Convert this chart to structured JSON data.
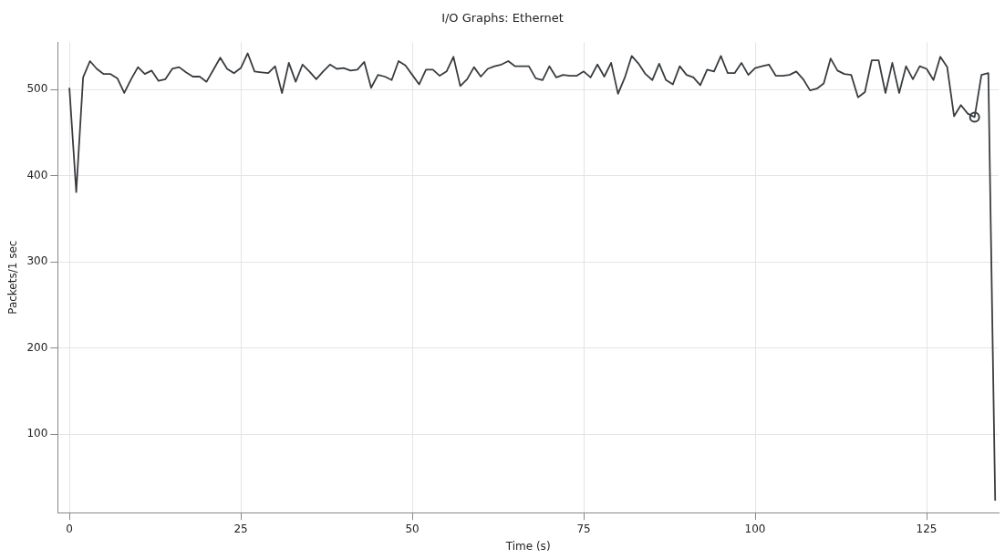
{
  "chart_data": {
    "type": "line",
    "title": "I/O Graphs: Ethernet",
    "xlabel": "Time (s)",
    "ylabel": "Packets/1 sec",
    "x": [
      0,
      1,
      2,
      3,
      4,
      5,
      6,
      7,
      8,
      9,
      10,
      11,
      12,
      13,
      14,
      15,
      16,
      17,
      18,
      19,
      20,
      21,
      22,
      23,
      24,
      25,
      26,
      27,
      28,
      29,
      30,
      31,
      32,
      33,
      34,
      35,
      36,
      37,
      38,
      39,
      40,
      41,
      42,
      43,
      44,
      45,
      46,
      47,
      48,
      49,
      50,
      51,
      52,
      53,
      54,
      55,
      56,
      57,
      58,
      59,
      60,
      61,
      62,
      63,
      64,
      65,
      66,
      67,
      68,
      69,
      70,
      71,
      72,
      73,
      74,
      75,
      76,
      77,
      78,
      79,
      80,
      81,
      82,
      83,
      84,
      85,
      86,
      87,
      88,
      89,
      90,
      91,
      92,
      93,
      94,
      95,
      96,
      97,
      98,
      99,
      100,
      101,
      102,
      103,
      104,
      105,
      106,
      107,
      108,
      109,
      110,
      111,
      112,
      113,
      114,
      115,
      116,
      117,
      118,
      119,
      120,
      121,
      122,
      123,
      124,
      125,
      126,
      127,
      128,
      129,
      130,
      131,
      132,
      133,
      134,
      135
    ],
    "series": [
      {
        "color": "#3a3d40",
        "values": [
          502,
          381,
          514,
          533,
          524,
          518,
          518,
          513,
          496,
          512,
          526,
          518,
          522,
          510,
          512,
          524,
          526,
          520,
          515,
          515,
          509,
          523,
          537,
          524,
          519,
          525,
          542,
          521,
          520,
          519,
          527,
          496,
          531,
          509,
          529,
          521,
          512,
          521,
          529,
          524,
          525,
          522,
          523,
          532,
          502,
          517,
          515,
          511,
          533,
          528,
          517,
          506,
          523,
          523,
          516,
          521,
          538,
          504,
          512,
          526,
          515,
          524,
          527,
          529,
          533,
          527,
          527,
          527,
          513,
          511,
          527,
          514,
          517,
          516,
          516,
          521,
          514,
          529,
          515,
          531,
          495,
          514,
          539,
          530,
          518,
          511,
          530,
          511,
          506,
          527,
          517,
          514,
          505,
          523,
          521,
          539,
          519,
          519,
          531,
          517,
          525,
          527,
          529,
          516,
          516,
          517,
          521,
          512,
          499,
          501,
          507,
          536,
          522,
          518,
          517,
          491,
          497,
          534,
          534,
          496,
          531,
          496,
          527,
          512,
          527,
          524,
          511,
          538,
          526,
          469,
          482,
          472,
          468,
          517,
          519,
          23
        ]
      },
      {
        "type": "scatter",
        "marker": "circle",
        "color": "#3a3d40",
        "x": [
          132
        ],
        "values": [
          468
        ]
      }
    ],
    "xlim": [
      -1.7,
      135.5
    ],
    "xticks": [
      0,
      25,
      50,
      75,
      100,
      125
    ],
    "ylim": [
      9,
      555
    ],
    "yticks": [
      100,
      200,
      300,
      400,
      500
    ],
    "grid": true,
    "legend": false,
    "line_style": "solid",
    "marker": "none"
  }
}
